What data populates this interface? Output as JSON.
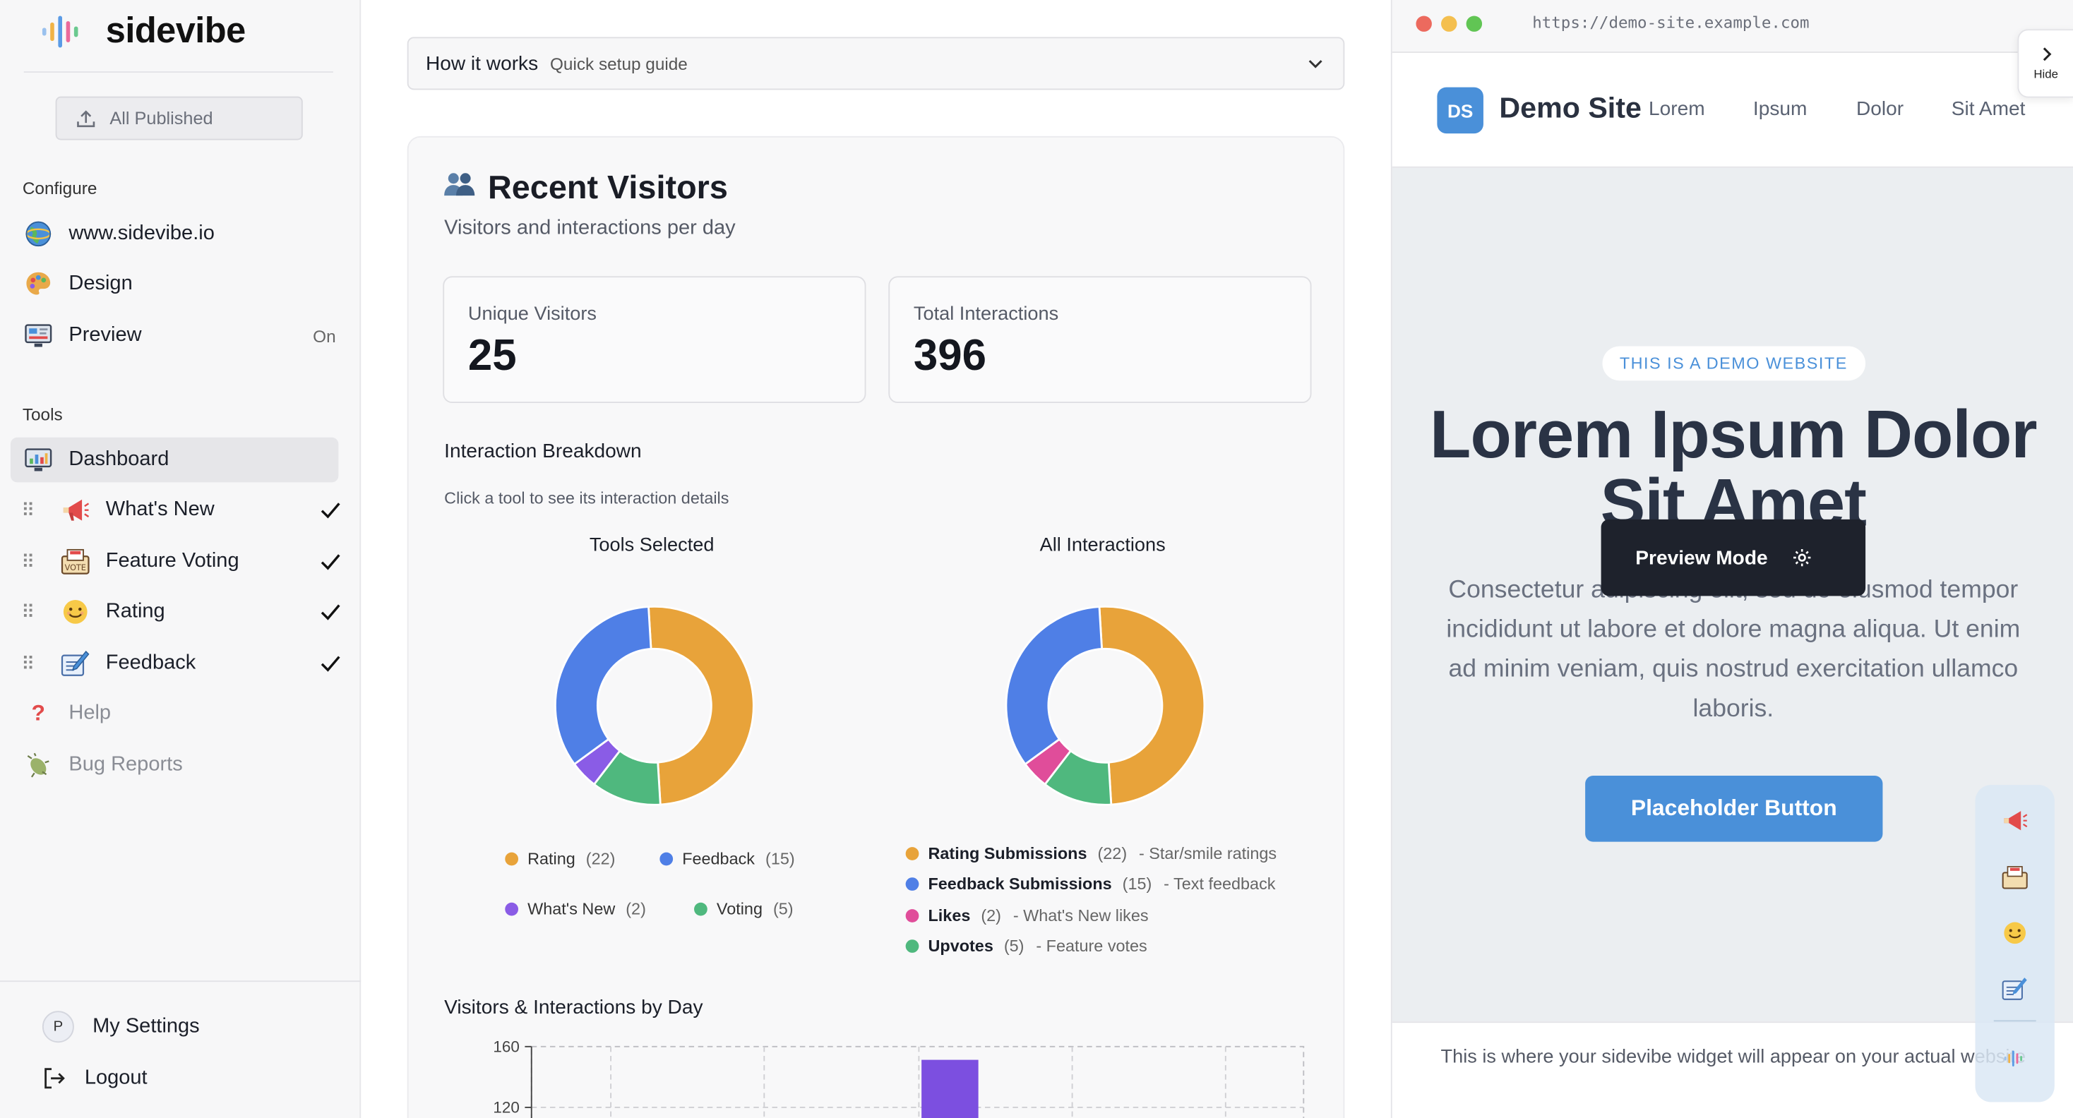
{
  "sidebar": {
    "brand": "sidevibe",
    "publish_label": "All Published",
    "configure_label": "Configure",
    "configure_items": [
      {
        "label": "www.sidevibe.io",
        "icon": "globe-icon"
      },
      {
        "label": "Design",
        "icon": "palette-icon"
      },
      {
        "label": "Preview",
        "icon": "monitor-icon",
        "status": "On"
      }
    ],
    "tools_label": "Tools",
    "dashboard_label": "Dashboard",
    "tools": [
      {
        "label": "What's New",
        "icon": "megaphone-icon",
        "checked": true
      },
      {
        "label": "Feature Voting",
        "icon": "ballot-box-icon",
        "checked": true
      },
      {
        "label": "Rating",
        "icon": "smile-icon",
        "checked": true
      },
      {
        "label": "Feedback",
        "icon": "memo-icon",
        "checked": true
      }
    ],
    "help_label": "Help",
    "bug_label": "Bug Reports",
    "settings_label": "My Settings",
    "avatar_initial": "P",
    "logout_label": "Logout"
  },
  "main": {
    "how_title": "How it works",
    "how_sub": "Quick setup guide",
    "title": "Recent Visitors",
    "subtitle": "Visitors and interactions per day",
    "stats": [
      {
        "label": "Unique Visitors",
        "value": "25"
      },
      {
        "label": "Total Interactions",
        "value": "396"
      }
    ],
    "breakdown_title": "Interaction Breakdown",
    "breakdown_sub": "Click a tool to see its interaction details",
    "bars_title": "Visitors & Interactions by Day"
  },
  "chart_data": [
    {
      "type": "pie",
      "title": "Tools Selected",
      "categories": [
        "Rating",
        "Feedback",
        "What's New",
        "Voting"
      ],
      "values": [
        22,
        15,
        2,
        5
      ],
      "colors": [
        "#e8a33a",
        "#4f7fe6",
        "#8a5ce6",
        "#4fb87e"
      ]
    },
    {
      "type": "pie",
      "title": "All Interactions",
      "categories": [
        "Rating Submissions",
        "Feedback Submissions",
        "Likes",
        "Upvotes"
      ],
      "values": [
        22,
        15,
        2,
        5
      ],
      "descriptions": [
        "Star/smile ratings",
        "Text feedback",
        "What's New likes",
        "Feature votes"
      ],
      "colors": [
        "#e8a33a",
        "#4f7fe6",
        "#e04d9a",
        "#4fb87e"
      ]
    },
    {
      "type": "bar",
      "title": "Visitors & Interactions by Day",
      "y_ticks": [
        "160",
        "120"
      ],
      "visible_bar_color": "#7c4fe0"
    }
  ],
  "preview": {
    "url": "https://demo-site.example.com",
    "hide_label": "Hide",
    "logo": "DS",
    "site_name": "Demo Site",
    "nav": [
      "Lorem",
      "Ipsum",
      "Dolor",
      "Sit Amet"
    ],
    "pill": "THIS IS A DEMO WEBSITE",
    "hero": "Lorem Ipsum Dolor Sit Amet",
    "paragraph": "Consectetur adipiscing elit, sed do eiusmod tempor incididunt ut labore et dolore magna aliqua. Ut enim ad minim veniam, quis nostrud exercitation ullamco laboris.",
    "button": "Placeholder Button",
    "toast": "Preview Mode",
    "footer": "This is where your sidevibe widget will appear on your actual website"
  }
}
